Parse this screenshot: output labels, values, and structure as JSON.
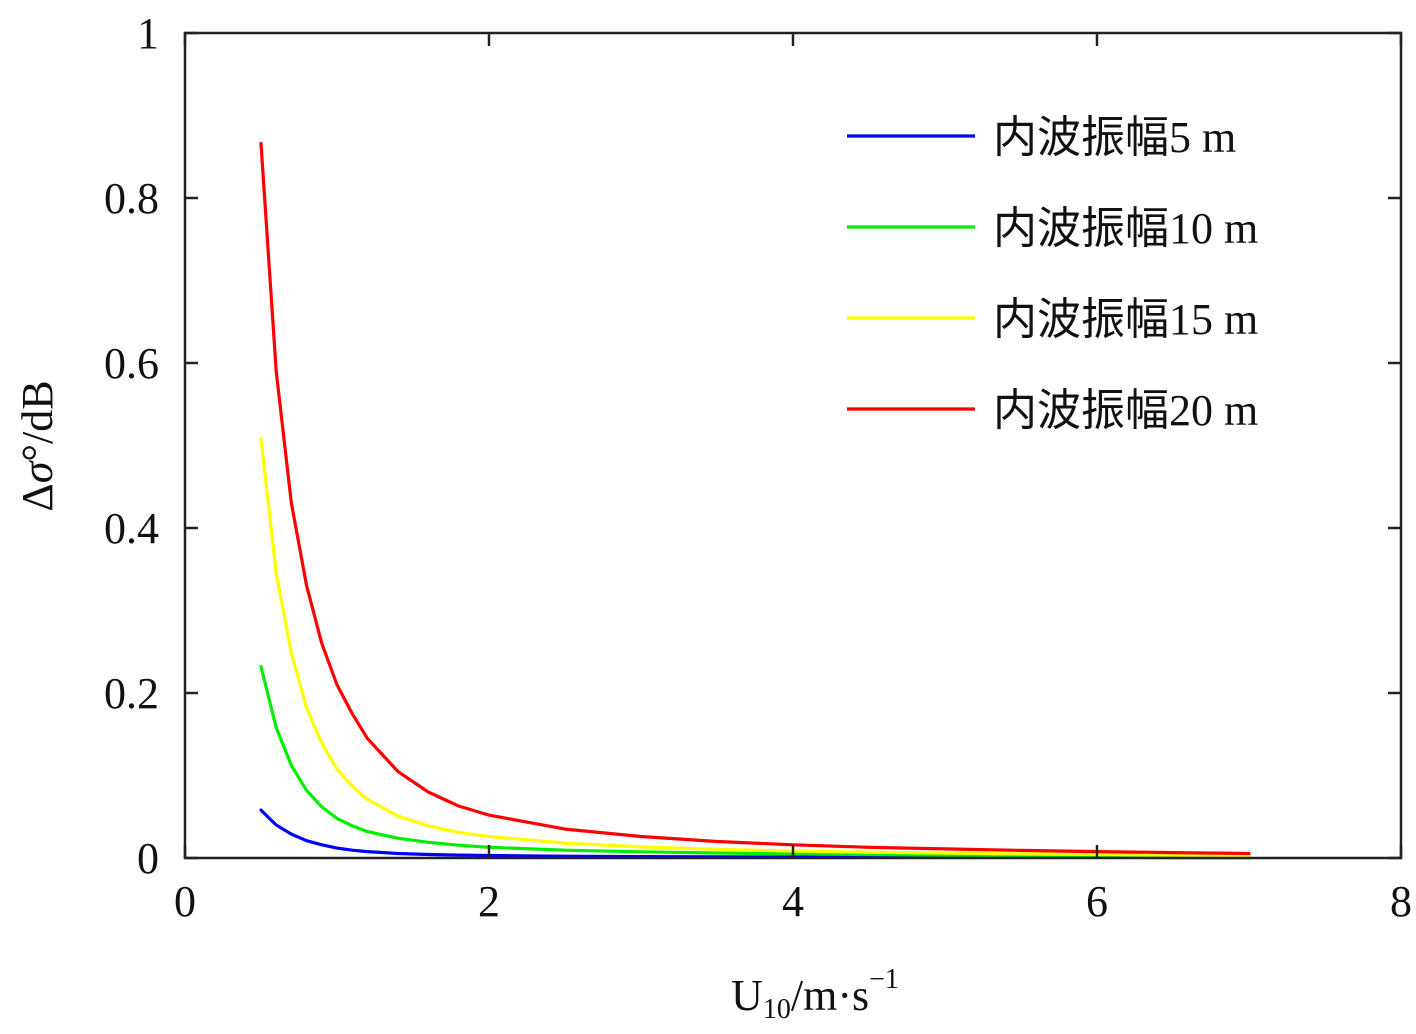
{
  "chart_data": {
    "type": "line",
    "title": "",
    "xlabel": {
      "prefix": "U",
      "subscript": "10",
      "unit": "/m·s",
      "superscript": "−1"
    },
    "ylabel": {
      "prefix": "Δ",
      "symbol": "σ",
      "degree": "°",
      "unit": "/dB"
    },
    "xlim": [
      0,
      8
    ],
    "ylim": [
      0,
      1
    ],
    "xticks": [
      0,
      2,
      4,
      6,
      8
    ],
    "xtick_labels": [
      "0",
      "2",
      "4",
      "6",
      "8"
    ],
    "yticks": [
      0,
      0.2,
      0.4,
      0.6,
      0.8,
      1
    ],
    "ytick_labels": [
      "0",
      "0.2",
      "0.4",
      "0.6",
      "0.8",
      "1"
    ],
    "grid": false,
    "legend_position": "top-right",
    "x": [
      0.5,
      0.6,
      0.7,
      0.8,
      0.9,
      1.0,
      1.1,
      1.2,
      1.4,
      1.6,
      1.8,
      2.0,
      2.5,
      3.0,
      3.5,
      4.0,
      4.5,
      5.0,
      5.5,
      6.0,
      6.5,
      7.0
    ],
    "series": [
      {
        "name": "内波振幅5 m",
        "color": "#0000ff",
        "values": [
          0.058,
          0.04,
          0.029,
          0.021,
          0.016,
          0.012,
          0.0095,
          0.0078,
          0.0055,
          0.0043,
          0.0035,
          0.003,
          0.0022,
          0.0017,
          0.0014,
          0.0012,
          0.001,
          0.0009,
          0.0008,
          0.0007,
          0.0006,
          0.0005
        ]
      },
      {
        "name": "内波振幅10 m",
        "color": "#00ee00",
        "values": [
          0.232,
          0.158,
          0.112,
          0.082,
          0.062,
          0.048,
          0.039,
          0.032,
          0.024,
          0.019,
          0.0155,
          0.013,
          0.0095,
          0.0075,
          0.006,
          0.005,
          0.0042,
          0.0035,
          0.003,
          0.0025,
          0.002,
          0.0015
        ]
      },
      {
        "name": "内波振幅15 m",
        "color": "#ffff00",
        "values": [
          0.508,
          0.345,
          0.248,
          0.182,
          0.139,
          0.108,
          0.087,
          0.071,
          0.051,
          0.039,
          0.031,
          0.026,
          0.018,
          0.0135,
          0.0105,
          0.0085,
          0.007,
          0.006,
          0.005,
          0.0042,
          0.0035,
          0.003
        ]
      },
      {
        "name": "内波振幅20 m",
        "color": "#ff0000",
        "values": [
          0.866,
          0.59,
          0.43,
          0.33,
          0.26,
          0.21,
          0.175,
          0.145,
          0.105,
          0.08,
          0.063,
          0.052,
          0.035,
          0.026,
          0.02,
          0.016,
          0.013,
          0.011,
          0.0092,
          0.0077,
          0.0065,
          0.0055
        ]
      }
    ]
  }
}
